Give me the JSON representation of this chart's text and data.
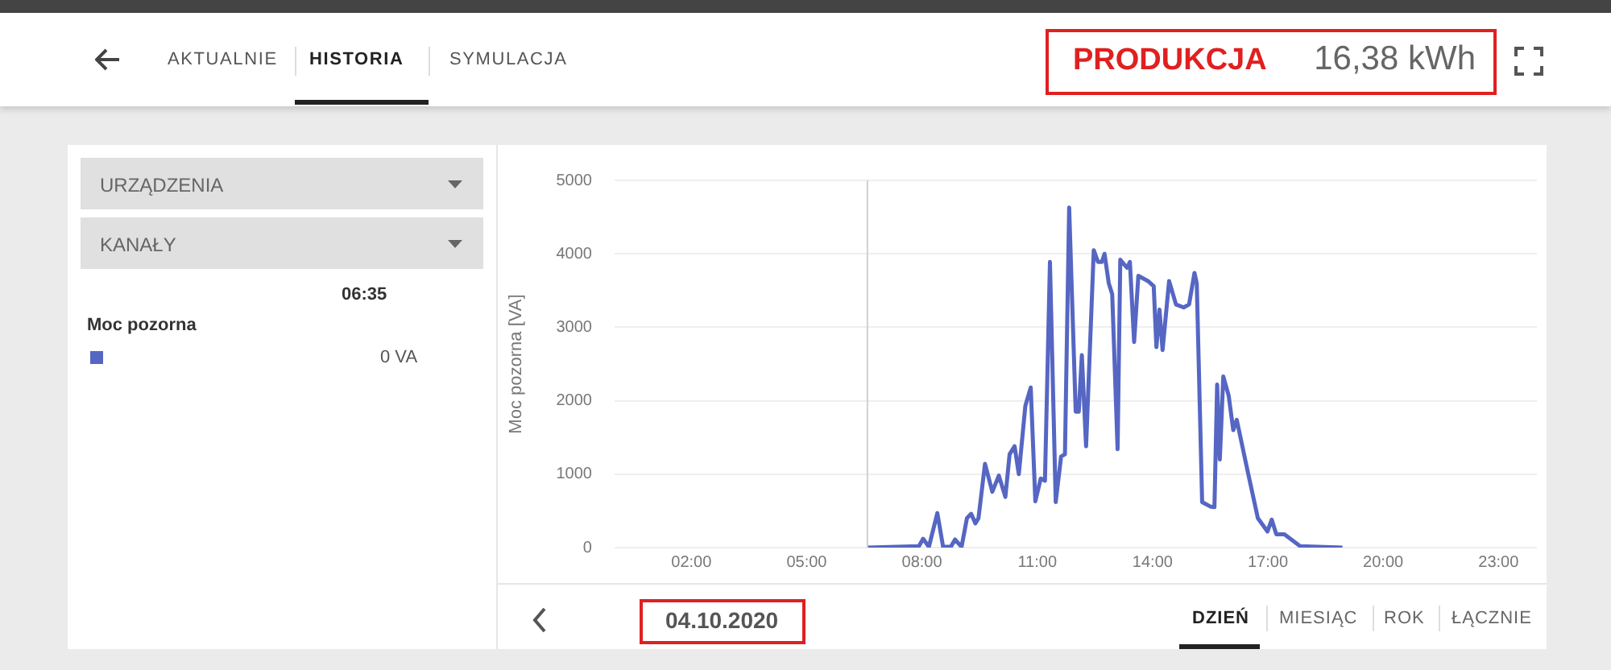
{
  "chart_data": {
    "type": "line",
    "ylabel": "Moc pozorna [VA]",
    "x": [
      6.58,
      7.92,
      8.03,
      8.18,
      8.4,
      8.55,
      8.75,
      8.86,
      9.03,
      9.17,
      9.28,
      9.39,
      9.47,
      9.64,
      9.83,
      10.0,
      10.17,
      10.28,
      10.41,
      10.52,
      10.69,
      10.83,
      10.95,
      11.09,
      11.2,
      11.33,
      11.48,
      11.62,
      11.72,
      11.83,
      12.0,
      12.08,
      12.16,
      12.27,
      12.47,
      12.58,
      12.68,
      12.75,
      12.86,
      12.95,
      13.09,
      13.16,
      13.27,
      13.34,
      13.41,
      13.52,
      13.63,
      13.88,
      14.03,
      14.1,
      14.18,
      14.26,
      14.43,
      14.61,
      14.81,
      14.95,
      15.09,
      15.15,
      15.29,
      15.5,
      15.61,
      15.68,
      15.75,
      15.84,
      15.98,
      16.1,
      16.19,
      16.47,
      16.74,
      16.99,
      17.1,
      17.22,
      17.43,
      17.84,
      18.94
    ],
    "series": [
      {
        "color": "#5566c3",
        "values": [
          0,
          20,
          120,
          10,
          470,
          10,
          10,
          110,
          10,
          400,
          460,
          330,
          400,
          1140,
          760,
          980,
          690,
          1270,
          1380,
          1000,
          1930,
          2180,
          630,
          940,
          910,
          3890,
          620,
          1240,
          1270,
          4630,
          1850,
          1850,
          2620,
          1380,
          4050,
          3890,
          3890,
          4000,
          3600,
          3450,
          1340,
          3920,
          3850,
          3810,
          3890,
          2800,
          3700,
          3630,
          3560,
          2730,
          3240,
          2690,
          3630,
          3310,
          3270,
          3310,
          3740,
          3600,
          620,
          560,
          550,
          2220,
          1200,
          2330,
          2070,
          1600,
          1740,
          1050,
          400,
          220,
          380,
          180,
          180,
          20,
          0
        ]
      }
    ],
    "xlim": [
      0,
      24
    ],
    "xticks": [
      {
        "value": 2,
        "label": "02:00"
      },
      {
        "value": 5,
        "label": "05:00"
      },
      {
        "value": 8,
        "label": "08:00"
      },
      {
        "value": 11,
        "label": "11:00"
      },
      {
        "value": 14,
        "label": "14:00"
      },
      {
        "value": 17,
        "label": "17:00"
      },
      {
        "value": 20,
        "label": "20:00"
      },
      {
        "value": 23,
        "label": "23:00"
      }
    ],
    "ylim": [
      0,
      5000
    ],
    "yticks": [
      0,
      1000,
      2000,
      3000,
      4000,
      5000
    ],
    "grid": "y",
    "marker": "none",
    "line_style": "solid",
    "legend": false,
    "ref_lines": [
      {
        "axis": "x",
        "value": 6.58,
        "color": "#d0d0d0"
      }
    ],
    "annotations": [
      "AKTUALNIE",
      "HISTORIA",
      "SYMULACJA",
      "PRODUKCJA",
      "16,38 kWh",
      "URZĄDZENIA",
      "KANAŁY",
      "06:35",
      "Moc pozorna",
      "0 VA",
      "04.10.2020",
      "DZIEŃ",
      "MIESIĄC",
      "ROK",
      "ŁĄCZNIE"
    ]
  }
}
